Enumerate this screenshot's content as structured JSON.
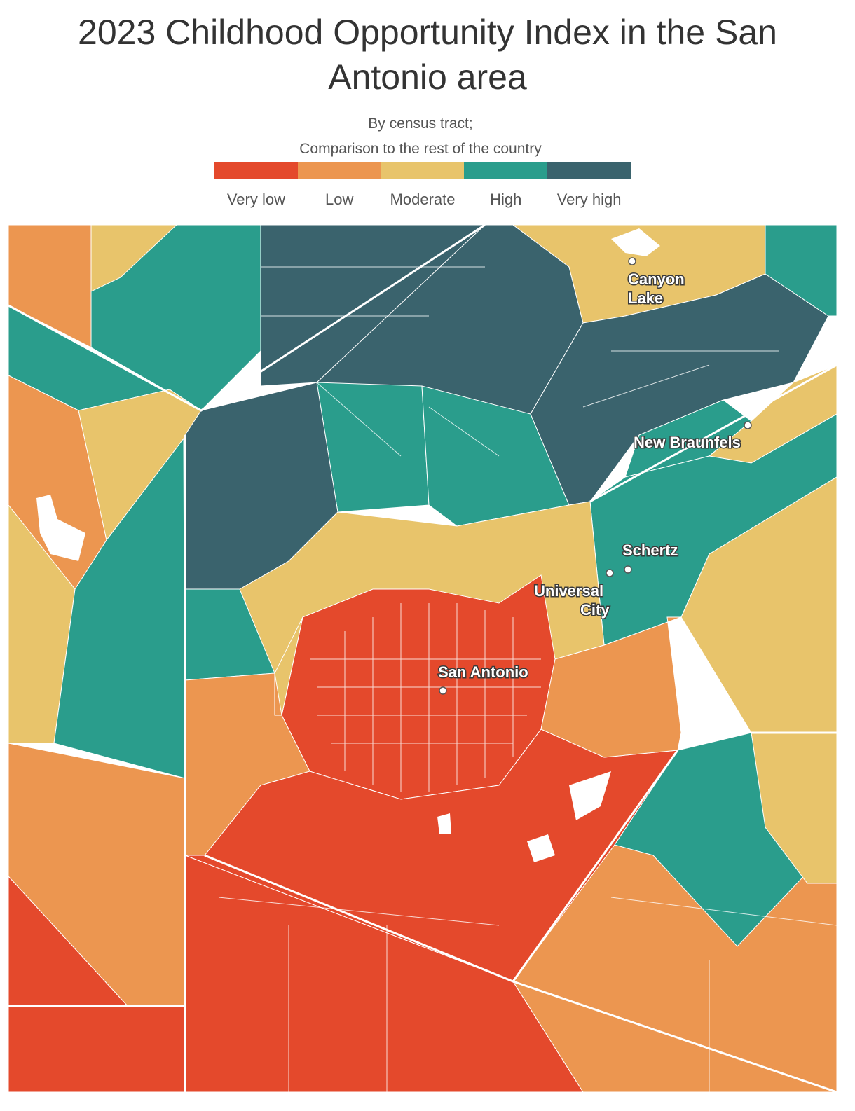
{
  "header": {
    "title": "2023 Childhood Opportunity Index in the San Antonio area",
    "subtitle_line1": "By census tract;",
    "subtitle_line2": "Comparison to the rest of the country"
  },
  "legend": [
    {
      "label": "Very low",
      "color": "#e4492c"
    },
    {
      "label": "Low",
      "color": "#ec9650"
    },
    {
      "label": "Moderate",
      "color": "#e8c46b"
    },
    {
      "label": "High",
      "color": "#2a9d8c"
    },
    {
      "label": "Very high",
      "color": "#3a636d"
    }
  ],
  "map": {
    "cities": [
      {
        "name": "Canyon Lake",
        "lines": [
          "Canyon",
          "Lake"
        ]
      },
      {
        "name": "New Braunfels",
        "lines": [
          "New Braunfels"
        ]
      },
      {
        "name": "Schertz",
        "lines": [
          "Schertz"
        ]
      },
      {
        "name": "Universal City",
        "lines": [
          "Universal",
          "City"
        ]
      },
      {
        "name": "San Antonio",
        "lines": [
          "San Antonio"
        ]
      }
    ]
  }
}
